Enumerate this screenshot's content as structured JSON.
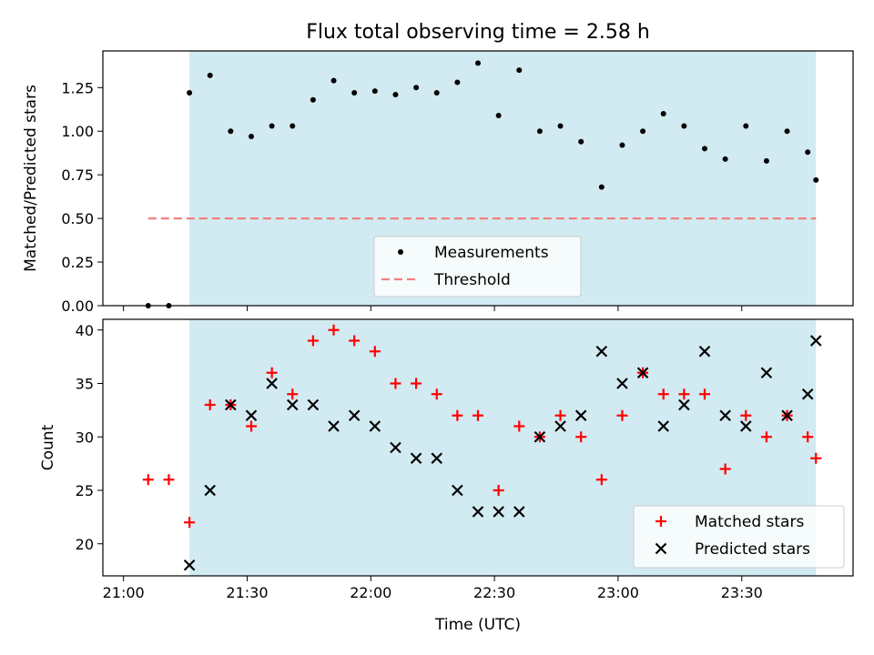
{
  "title": "Flux total observing time = 2.58 h",
  "colors": {
    "shade": "#add8e6",
    "measurement": "#000000",
    "threshold": "#f08080",
    "matched": "#ff0000",
    "predicted": "#000000"
  },
  "chart_data": [
    {
      "type": "scatter",
      "panel": "top",
      "ylabel": "Matched/Predicted stars",
      "ylim": [
        0,
        1.46
      ],
      "yticks": [
        0.0,
        0.25,
        0.5,
        0.75,
        1.0,
        1.25
      ],
      "ytick_labels": [
        "0.00",
        "0.25",
        "0.50",
        "0.75",
        "1.00",
        "1.25"
      ],
      "xlim": [
        "20:55",
        "23:57"
      ],
      "shaded_span": [
        "21:16",
        "23:48"
      ],
      "legend": {
        "position": "lower-center",
        "entries": [
          "Measurements",
          "Threshold"
        ]
      },
      "threshold": {
        "name": "Threshold",
        "value": 0.5,
        "x_range": [
          "21:06",
          "23:48"
        ]
      },
      "series": [
        {
          "name": "Measurements",
          "marker": "dot",
          "x": [
            "21:06",
            "21:11",
            "21:16",
            "21:21",
            "21:26",
            "21:31",
            "21:36",
            "21:41",
            "21:46",
            "21:51",
            "21:56",
            "22:01",
            "22:06",
            "22:11",
            "22:16",
            "22:21",
            "22:26",
            "22:31",
            "22:36",
            "22:41",
            "22:46",
            "22:51",
            "22:56",
            "23:01",
            "23:06",
            "23:11",
            "23:16",
            "23:21",
            "23:26",
            "23:31",
            "23:36",
            "23:41",
            "23:46",
            "23:48"
          ],
          "y": [
            0.0,
            0.0,
            1.22,
            1.32,
            1.0,
            0.97,
            1.03,
            1.03,
            1.18,
            1.29,
            1.22,
            1.23,
            1.21,
            1.25,
            1.22,
            1.28,
            1.39,
            1.09,
            1.35,
            1.0,
            1.03,
            0.94,
            0.68,
            0.92,
            1.0,
            1.1,
            1.03,
            0.9,
            0.84,
            1.03,
            0.83,
            1.0,
            0.88,
            0.72
          ]
        }
      ]
    },
    {
      "type": "scatter",
      "panel": "bottom",
      "ylabel": "Count",
      "xlabel": "Time (UTC)",
      "ylim": [
        17,
        41
      ],
      "yticks": [
        20,
        25,
        30,
        35,
        40
      ],
      "ytick_labels": [
        "20",
        "25",
        "30",
        "35",
        "40"
      ],
      "xlim": [
        "20:55",
        "23:57"
      ],
      "xticks": [
        "21:00",
        "21:30",
        "22:00",
        "22:30",
        "23:00",
        "23:30"
      ],
      "xtick_labels": [
        "21:00",
        "21:30",
        "22:00",
        "22:30",
        "23:00",
        "23:30"
      ],
      "shaded_span": [
        "21:16",
        "23:48"
      ],
      "legend": {
        "position": "lower-right",
        "entries": [
          "Matched stars",
          "Predicted stars"
        ]
      },
      "series": [
        {
          "name": "Matched stars",
          "marker": "plus",
          "x": [
            "21:06",
            "21:11",
            "21:16",
            "21:21",
            "21:26",
            "21:31",
            "21:36",
            "21:41",
            "21:46",
            "21:51",
            "21:56",
            "22:01",
            "22:06",
            "22:11",
            "22:16",
            "22:21",
            "22:26",
            "22:31",
            "22:36",
            "22:41",
            "22:46",
            "22:51",
            "22:56",
            "23:01",
            "23:06",
            "23:11",
            "23:16",
            "23:21",
            "23:26",
            "23:31",
            "23:36",
            "23:41",
            "23:46",
            "23:48"
          ],
          "y": [
            26,
            26,
            22,
            33,
            33,
            31,
            36,
            34,
            39,
            40,
            39,
            38,
            35,
            35,
            34,
            32,
            32,
            25,
            31,
            30,
            32,
            30,
            26,
            32,
            36,
            34,
            34,
            34,
            27,
            32,
            30,
            32,
            30,
            28
          ]
        },
        {
          "name": "Predicted stars",
          "marker": "x",
          "x": [
            "21:16",
            "21:21",
            "21:26",
            "21:31",
            "21:36",
            "21:41",
            "21:46",
            "21:51",
            "21:56",
            "22:01",
            "22:06",
            "22:11",
            "22:16",
            "22:21",
            "22:26",
            "22:31",
            "22:36",
            "22:41",
            "22:46",
            "22:51",
            "22:56",
            "23:01",
            "23:06",
            "23:11",
            "23:16",
            "23:21",
            "23:26",
            "23:31",
            "23:36",
            "23:41",
            "23:46",
            "23:48"
          ],
          "y": [
            18,
            25,
            33,
            32,
            35,
            33,
            33,
            31,
            32,
            31,
            29,
            28,
            28,
            25,
            23,
            23,
            23,
            30,
            31,
            32,
            38,
            35,
            36,
            31,
            33,
            38,
            32,
            31,
            36,
            32,
            34,
            39
          ]
        }
      ]
    }
  ]
}
